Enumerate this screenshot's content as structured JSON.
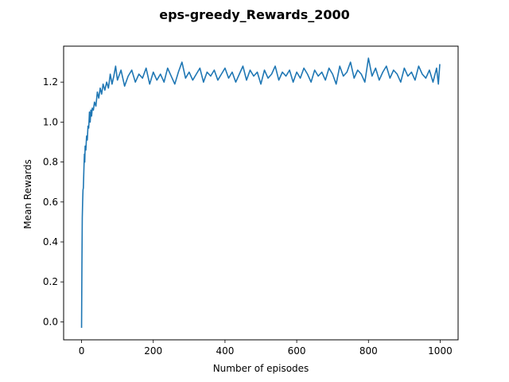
{
  "chart_data": {
    "type": "line",
    "title": "eps-greedy_Rewards_2000",
    "xlabel": "Number of episodes",
    "ylabel": "Mean Rewards",
    "xlim": [
      -50,
      1050
    ],
    "ylim": [
      -0.09,
      1.38
    ],
    "xticks": [
      0,
      200,
      400,
      600,
      800,
      1000
    ],
    "yticks": [
      0.0,
      0.2,
      0.4,
      0.6,
      0.8,
      1.0,
      1.2
    ],
    "xtick_labels": [
      "0",
      "200",
      "400",
      "600",
      "800",
      "1000"
    ],
    "ytick_labels": [
      "0.0",
      "0.2",
      "0.4",
      "0.6",
      "0.8",
      "1.0",
      "1.2"
    ],
    "grid": false,
    "legend": "none",
    "series": [
      {
        "color": "#1f77b4",
        "x": [
          0,
          1,
          2,
          3,
          4,
          5,
          6,
          7,
          8,
          9,
          10,
          12,
          14,
          16,
          18,
          20,
          22,
          24,
          26,
          28,
          30,
          33,
          36,
          40,
          44,
          48,
          52,
          56,
          60,
          65,
          70,
          75,
          80,
          85,
          90,
          95,
          100,
          110,
          120,
          130,
          140,
          150,
          160,
          170,
          180,
          190,
          200,
          210,
          220,
          230,
          240,
          250,
          260,
          270,
          280,
          290,
          300,
          310,
          320,
          330,
          340,
          350,
          360,
          370,
          380,
          390,
          400,
          410,
          420,
          430,
          440,
          450,
          460,
          470,
          480,
          490,
          500,
          510,
          520,
          530,
          540,
          550,
          560,
          570,
          580,
          590,
          600,
          610,
          620,
          630,
          640,
          650,
          660,
          670,
          680,
          690,
          700,
          710,
          720,
          730,
          740,
          750,
          760,
          770,
          780,
          790,
          800,
          810,
          820,
          830,
          840,
          850,
          860,
          870,
          880,
          890,
          900,
          910,
          920,
          930,
          940,
          950,
          960,
          970,
          980,
          990,
          995,
          999
        ],
        "y": [
          -0.03,
          0.28,
          0.52,
          0.6,
          0.66,
          0.67,
          0.73,
          0.79,
          0.84,
          0.8,
          0.88,
          0.86,
          0.93,
          0.91,
          0.98,
          0.97,
          1.05,
          1.0,
          1.06,
          1.03,
          1.07,
          1.06,
          1.1,
          1.08,
          1.15,
          1.12,
          1.17,
          1.14,
          1.19,
          1.16,
          1.2,
          1.17,
          1.24,
          1.19,
          1.23,
          1.28,
          1.21,
          1.26,
          1.18,
          1.23,
          1.26,
          1.2,
          1.24,
          1.22,
          1.27,
          1.19,
          1.25,
          1.21,
          1.24,
          1.2,
          1.27,
          1.23,
          1.19,
          1.25,
          1.3,
          1.22,
          1.25,
          1.21,
          1.24,
          1.27,
          1.2,
          1.25,
          1.23,
          1.26,
          1.21,
          1.24,
          1.27,
          1.22,
          1.25,
          1.2,
          1.24,
          1.28,
          1.21,
          1.26,
          1.23,
          1.25,
          1.19,
          1.26,
          1.22,
          1.24,
          1.28,
          1.21,
          1.25,
          1.23,
          1.26,
          1.2,
          1.25,
          1.22,
          1.27,
          1.24,
          1.2,
          1.26,
          1.23,
          1.25,
          1.21,
          1.27,
          1.24,
          1.19,
          1.28,
          1.23,
          1.25,
          1.3,
          1.22,
          1.26,
          1.24,
          1.2,
          1.32,
          1.23,
          1.27,
          1.21,
          1.25,
          1.28,
          1.22,
          1.26,
          1.24,
          1.2,
          1.27,
          1.23,
          1.25,
          1.21,
          1.28,
          1.24,
          1.22,
          1.26,
          1.2,
          1.27,
          1.19,
          1.29
        ]
      }
    ]
  }
}
